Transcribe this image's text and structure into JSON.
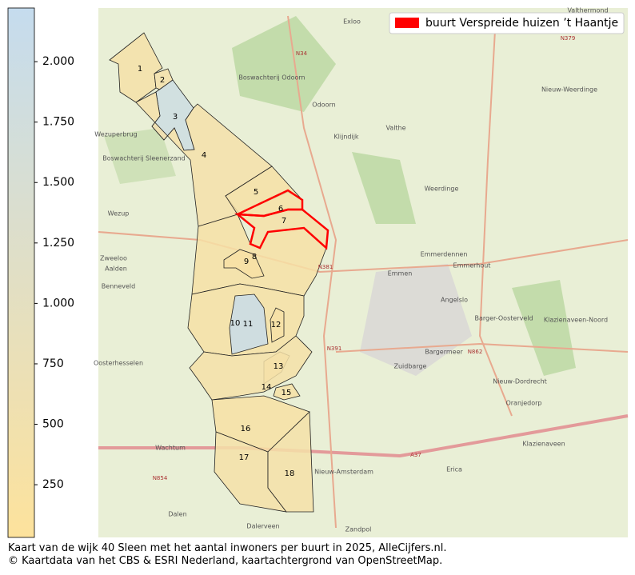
{
  "colorbar": {
    "lim": [
      32,
      2222
    ],
    "colors": [
      "#fde29c",
      "#c5dcee"
    ],
    "ticks": [
      {
        "value": 2000,
        "label": "2.000"
      },
      {
        "value": 1750,
        "label": "1.750"
      },
      {
        "value": 1500,
        "label": "1.500"
      },
      {
        "value": 1250,
        "label": "1.250"
      },
      {
        "value": 1000,
        "label": "1.000"
      },
      750,
      500,
      250
    ]
  },
  "legend": {
    "label": "buurt Verspreide huizen ’t Haantje",
    "color": "#ff0000"
  },
  "regions": [
    {
      "label": "1",
      "value": 350
    },
    {
      "label": "2",
      "value": 400
    },
    {
      "label": "3",
      "value": 1900
    },
    {
      "label": "4",
      "value": 400
    },
    {
      "label": "5",
      "value": 300
    },
    {
      "label": "6",
      "value": 300
    },
    {
      "label": "7",
      "value": 350
    },
    {
      "label": "8",
      "value": 300
    },
    {
      "label": "9",
      "value": 250
    },
    {
      "label": "10",
      "value": 300
    },
    {
      "label": "11",
      "value": 2100
    },
    {
      "label": "12",
      "value": 300
    },
    {
      "label": "13",
      "value": 300
    },
    {
      "label": "14",
      "value": 350
    },
    {
      "label": "15",
      "value": 300
    },
    {
      "label": "16",
      "value": 250
    },
    {
      "label": "17",
      "value": 350
    },
    {
      "label": "18",
      "value": 350
    }
  ],
  "map_labels": [
    "Exloo",
    "Boswachterij Odoorn",
    "Odoorn",
    "Valthe",
    "Klijndijk",
    "Weerdinge",
    "Emmen",
    "Emmerhout",
    "Emmerdennen",
    "Angelslo",
    "Barger-Oosterveld",
    "Bargermeer",
    "Zuidbarge",
    "Nieuw-Dordrecht",
    "Oranjedorp",
    "Klazienaveen",
    "Klazienaveen-Noord",
    "Nieuw-Weerdinge",
    "Valthermond",
    "Wezuperbrug",
    "Boswachterij Sleenerzand",
    "Wezup",
    "Zweeloo",
    "Aalden",
    "Benneveld",
    "Oosterhesselen",
    "Wachtum",
    "Dalen",
    "Dalerveen",
    "Zandpol",
    "Nieuw-Amsterdam",
    "Erica",
    "N34",
    "N381",
    "N391",
    "N862",
    "N379",
    "A37",
    "N854"
  ],
  "caption": [
    "Kaart van de wijk 40 Sleen met het aantal inwoners per buurt in 2025, AlleCijfers.nl.",
    "© Kaartdata van het CBS & ESRI Nederland, kaartachtergrond van OpenStreetMap."
  ]
}
